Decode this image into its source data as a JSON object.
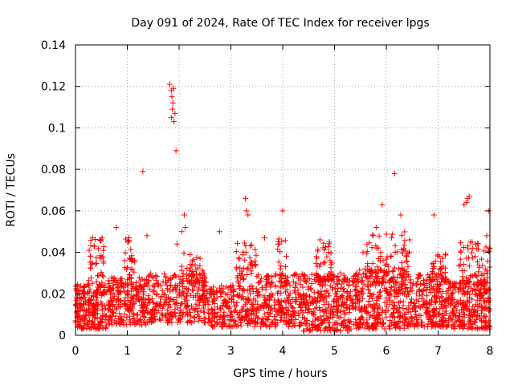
{
  "chart_data": {
    "type": "scatter",
    "title": "Day 091 of 2024, Rate Of TEC Index for receiver lpgs",
    "xlabel": "GPS time / hours",
    "ylabel": "ROTI / TECUs",
    "xlim": [
      0,
      8
    ],
    "ylim": [
      0,
      0.14
    ],
    "x_ticks": [
      0,
      1,
      2,
      3,
      4,
      5,
      6,
      7,
      8
    ],
    "x_tick_labels": [
      "0",
      "1",
      "2",
      "3",
      "4",
      "5",
      "6",
      "7",
      "8"
    ],
    "y_ticks": [
      0,
      0.02,
      0.04,
      0.06,
      0.08,
      0.1,
      0.12,
      0.14
    ],
    "y_tick_labels": [
      "0",
      "0.02",
      "0.04",
      "0.06",
      "0.08",
      "0.1",
      "0.12",
      "0.14"
    ],
    "grid": true,
    "marker": "plus",
    "color": "#ff0000",
    "baseline_points": [
      [
        0.05,
        0.012
      ],
      [
        0.12,
        0.018
      ],
      [
        0.2,
        0.01
      ],
      [
        0.28,
        0.022
      ],
      [
        0.35,
        0.015
      ],
      [
        0.42,
        0.008
      ],
      [
        0.5,
        0.02
      ],
      [
        0.58,
        0.013
      ],
      [
        0.65,
        0.025
      ],
      [
        0.72,
        0.011
      ],
      [
        0.8,
        0.017
      ],
      [
        0.88,
        0.009
      ],
      [
        0.95,
        0.021
      ],
      [
        1.05,
        0.014
      ],
      [
        1.12,
        0.019
      ],
      [
        1.2,
        0.007
      ],
      [
        1.28,
        0.023
      ],
      [
        1.36,
        0.012
      ],
      [
        1.44,
        0.016
      ],
      [
        1.52,
        0.01
      ],
      [
        1.6,
        0.024
      ],
      [
        1.68,
        0.013
      ],
      [
        1.76,
        0.018
      ],
      [
        1.84,
        0.027
      ],
      [
        1.92,
        0.015
      ],
      [
        2.0,
        0.02
      ],
      [
        2.08,
        0.011
      ],
      [
        2.16,
        0.026
      ],
      [
        2.24,
        0.014
      ],
      [
        2.32,
        0.019
      ],
      [
        2.4,
        0.008
      ],
      [
        2.48,
        0.022
      ],
      [
        2.56,
        0.016
      ],
      [
        2.64,
        0.012
      ],
      [
        2.72,
        0.021
      ],
      [
        2.8,
        0.009
      ],
      [
        2.88,
        0.017
      ],
      [
        2.96,
        0.013
      ],
      [
        3.04,
        0.024
      ],
      [
        3.12,
        0.011
      ],
      [
        3.2,
        0.018
      ],
      [
        3.28,
        0.015
      ],
      [
        3.36,
        0.022
      ],
      [
        3.44,
        0.01
      ],
      [
        3.52,
        0.019
      ],
      [
        3.6,
        0.014
      ],
      [
        3.68,
        0.026
      ],
      [
        3.76,
        0.012
      ],
      [
        3.84,
        0.017
      ],
      [
        3.92,
        0.021
      ],
      [
        4.0,
        0.013
      ],
      [
        4.08,
        0.018
      ],
      [
        4.16,
        0.009
      ],
      [
        4.24,
        0.023
      ],
      [
        4.32,
        0.015
      ],
      [
        4.4,
        0.02
      ],
      [
        4.48,
        0.011
      ],
      [
        4.56,
        0.025
      ],
      [
        4.64,
        0.016
      ],
      [
        4.72,
        0.012
      ],
      [
        4.8,
        0.019
      ],
      [
        4.88,
        0.008
      ],
      [
        4.96,
        0.022
      ],
      [
        5.04,
        0.014
      ],
      [
        5.12,
        0.018
      ],
      [
        5.2,
        0.01
      ],
      [
        5.28,
        0.024
      ],
      [
        5.36,
        0.013
      ],
      [
        5.44,
        0.017
      ],
      [
        5.52,
        0.021
      ],
      [
        5.6,
        0.012
      ],
      [
        5.68,
        0.019
      ],
      [
        5.76,
        0.015
      ],
      [
        5.84,
        0.026
      ],
      [
        5.92,
        0.011
      ],
      [
        6.0,
        0.018
      ],
      [
        6.08,
        0.022
      ],
      [
        6.16,
        0.014
      ],
      [
        6.24,
        0.02
      ],
      [
        6.32,
        0.009
      ],
      [
        6.4,
        0.023
      ],
      [
        6.48,
        0.016
      ],
      [
        6.56,
        0.012
      ],
      [
        6.64,
        0.019
      ],
      [
        6.72,
        0.025
      ],
      [
        6.8,
        0.013
      ],
      [
        6.88,
        0.017
      ],
      [
        6.96,
        0.01
      ],
      [
        7.04,
        0.021
      ],
      [
        7.12,
        0.014
      ],
      [
        7.2,
        0.008
      ],
      [
        7.28,
        0.018
      ],
      [
        7.36,
        0.012
      ],
      [
        7.44,
        0.022
      ],
      [
        7.52,
        0.015
      ],
      [
        7.6,
        0.026
      ],
      [
        7.68,
        0.011
      ],
      [
        7.76,
        0.019
      ],
      [
        7.84,
        0.024
      ],
      [
        7.92,
        0.013
      ],
      [
        7.98,
        0.016
      ]
    ],
    "notable_points": [
      [
        1.3,
        0.079
      ],
      [
        1.82,
        0.121
      ],
      [
        1.85,
        0.118
      ],
      [
        1.86,
        0.115
      ],
      [
        1.88,
        0.112
      ],
      [
        1.87,
        0.109
      ],
      [
        1.85,
        0.105
      ],
      [
        1.89,
        0.119
      ],
      [
        1.92,
        0.107
      ],
      [
        1.9,
        0.103
      ],
      [
        1.94,
        0.089
      ],
      [
        2.1,
        0.058
      ],
      [
        2.12,
        0.052
      ],
      [
        3.28,
        0.066
      ],
      [
        3.3,
        0.06
      ],
      [
        3.33,
        0.058
      ],
      [
        4.0,
        0.06
      ],
      [
        5.92,
        0.063
      ],
      [
        6.16,
        0.078
      ],
      [
        6.28,
        0.058
      ],
      [
        7.57,
        0.066
      ],
      [
        7.6,
        0.067
      ],
      [
        7.55,
        0.064
      ],
      [
        7.5,
        0.063
      ],
      [
        7.98,
        0.06
      ],
      [
        6.92,
        0.058
      ],
      [
        0.33,
        0.047
      ],
      [
        1.03,
        0.047
      ],
      [
        2.78,
        0.05
      ],
      [
        4.72,
        0.046
      ],
      [
        5.81,
        0.052
      ],
      [
        1.38,
        0.048
      ],
      [
        4.9,
        0.045
      ],
      [
        6.45,
        0.046
      ],
      [
        7.94,
        0.048
      ],
      [
        2.05,
        0.05
      ],
      [
        1.96,
        0.044
      ],
      [
        0.79,
        0.052
      ],
      [
        3.65,
        0.047
      ],
      [
        5.55,
        0.04
      ]
    ],
    "dense_clusters": [
      {
        "x_range": [
          0.0,
          0.6
        ],
        "y_range": [
          0.003,
          0.025
        ],
        "count": 220
      },
      {
        "x_range": [
          0.6,
          1.4
        ],
        "y_range": [
          0.005,
          0.028
        ],
        "count": 240
      },
      {
        "x_range": [
          1.4,
          2.6
        ],
        "y_range": [
          0.006,
          0.03
        ],
        "count": 300
      },
      {
        "x_range": [
          2.6,
          3.5
        ],
        "y_range": [
          0.004,
          0.024
        ],
        "count": 220
      },
      {
        "x_range": [
          3.5,
          4.4
        ],
        "y_range": [
          0.004,
          0.03
        ],
        "count": 240
      },
      {
        "x_range": [
          4.4,
          5.4
        ],
        "y_range": [
          0.002,
          0.03
        ],
        "count": 300
      },
      {
        "x_range": [
          5.4,
          6.4
        ],
        "y_range": [
          0.003,
          0.032
        ],
        "count": 320
      },
      {
        "x_range": [
          6.4,
          7.2
        ],
        "y_range": [
          0.004,
          0.03
        ],
        "count": 260
      },
      {
        "x_range": [
          7.2,
          8.0
        ],
        "y_range": [
          0.003,
          0.026
        ],
        "count": 260
      },
      {
        "x_range": [
          0.25,
          0.55
        ],
        "y_range": [
          0.025,
          0.047
        ],
        "count": 40
      },
      {
        "x_range": [
          0.95,
          1.15
        ],
        "y_range": [
          0.025,
          0.047
        ],
        "count": 30
      },
      {
        "x_range": [
          2.05,
          2.45
        ],
        "y_range": [
          0.025,
          0.04
        ],
        "count": 40
      },
      {
        "x_range": [
          3.1,
          3.5
        ],
        "y_range": [
          0.025,
          0.045
        ],
        "count": 45
      },
      {
        "x_range": [
          3.9,
          4.1
        ],
        "y_range": [
          0.025,
          0.048
        ],
        "count": 30
      },
      {
        "x_range": [
          4.6,
          4.95
        ],
        "y_range": [
          0.025,
          0.045
        ],
        "count": 45
      },
      {
        "x_range": [
          5.6,
          6.45
        ],
        "y_range": [
          0.025,
          0.05
        ],
        "count": 90
      },
      {
        "x_range": [
          6.85,
          7.15
        ],
        "y_range": [
          0.025,
          0.04
        ],
        "count": 35
      },
      {
        "x_range": [
          7.4,
          8.0
        ],
        "y_range": [
          0.025,
          0.045
        ],
        "count": 70
      }
    ]
  }
}
